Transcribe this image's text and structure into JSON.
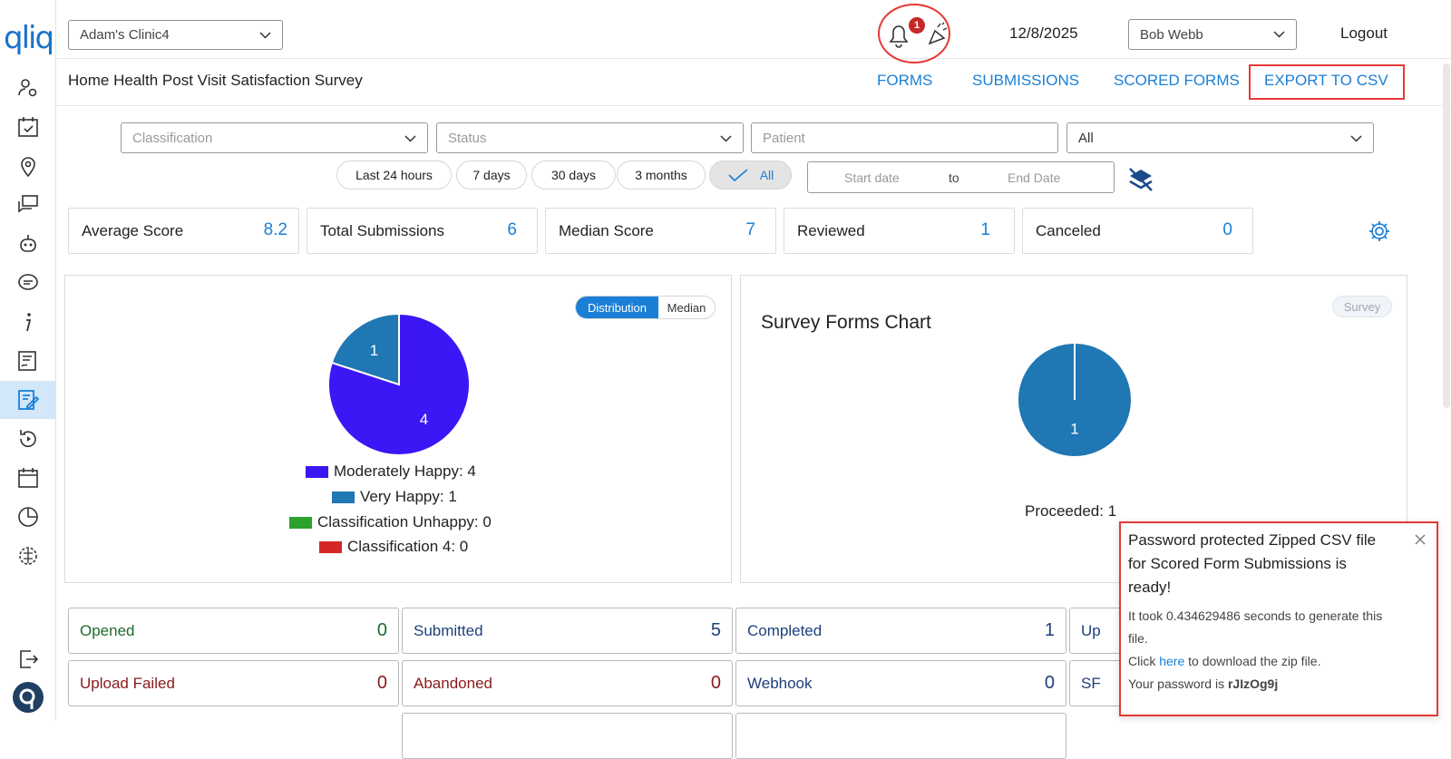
{
  "app": {
    "logo_text": "qliq"
  },
  "header": {
    "clinic_select": "Adam's Clinic4",
    "notification_count": "1",
    "date": "12/8/2025",
    "user_select": "Bob Webb",
    "logout_label": "Logout"
  },
  "subheader": {
    "title": "Home Health Post Visit Satisfaction Survey",
    "tabs": [
      "FORMS",
      "SUBMISSIONS",
      "SCORED FORMS",
      "EXPORT TO CSV"
    ]
  },
  "filters": {
    "classification_placeholder": "Classification",
    "status_placeholder": "Status",
    "patient_placeholder": "Patient",
    "all_select": "All",
    "ranges": [
      "Last 24 hours",
      "7 days",
      "30 days",
      "3 months",
      "All"
    ],
    "start_date_placeholder": "Start date",
    "to_label": "to",
    "end_date_placeholder": "End Date"
  },
  "stats": [
    {
      "label": "Average Score",
      "value": "8.2"
    },
    {
      "label": "Total Submissions",
      "value": "6"
    },
    {
      "label": "Median Score",
      "value": "7"
    },
    {
      "label": "Reviewed",
      "value": "1"
    },
    {
      "label": "Canceled",
      "value": "0"
    }
  ],
  "distribution_panel": {
    "toggle": [
      "Distribution",
      "Median"
    ],
    "legend": [
      {
        "label": "Moderately Happy: 4",
        "color": "#3d16f5"
      },
      {
        "label": "Very Happy: 1",
        "color": "#1f77b4"
      },
      {
        "label": "Classification Unhappy: 0",
        "color": "#2ca02c"
      },
      {
        "label": "Classification 4: 0",
        "color": "#d62728"
      }
    ],
    "slice_labels": [
      "1",
      "4"
    ]
  },
  "survey_panel": {
    "title": "Survey Forms Chart",
    "badge": "Survey",
    "slice_label": "1",
    "legend": "Proceeded: 1"
  },
  "chart_data": [
    {
      "type": "pie",
      "categories": [
        "Moderately Happy",
        "Very Happy",
        "Classification Unhappy",
        "Classification 4"
      ],
      "values": [
        4,
        1,
        0,
        0
      ],
      "colors": [
        "#3d16f5",
        "#1f77b4",
        "#2ca02c",
        "#d62728"
      ]
    },
    {
      "type": "pie",
      "title": "Survey Forms Chart",
      "categories": [
        "Proceeded"
      ],
      "values": [
        1
      ],
      "colors": [
        "#1f77b4"
      ]
    }
  ],
  "status_cards": [
    {
      "label": "Opened",
      "value": "0",
      "color": "#1e6b2e"
    },
    {
      "label": "Submitted",
      "value": "5",
      "color": "#1d3f7a"
    },
    {
      "label": "Completed",
      "value": "1",
      "color": "#1d3f7a"
    },
    {
      "label": "Up",
      "value": "",
      "color": "#1d3f7a"
    },
    {
      "label": "Upload Failed",
      "value": "0",
      "color": "#8b1a1a"
    },
    {
      "label": "Abandoned",
      "value": "0",
      "color": "#8b1a1a"
    },
    {
      "label": "Webhook",
      "value": "0",
      "color": "#1d3f7a"
    },
    {
      "label": "SF",
      "value": "",
      "color": "#1d3f7a"
    }
  ],
  "toast": {
    "title": "Password protected Zipped CSV file for Scored Form Submissions is ready!",
    "line1": "It took 0.434629486 seconds to generate this file.",
    "click_prefix": "Click ",
    "link_text": "here",
    "click_suffix": " to download the zip file.",
    "password_prefix": "Your password is ",
    "password": "rJIzOg9j"
  },
  "icons": {
    "sidebar": [
      "user-settings-icon",
      "calendar-check-icon",
      "location-pin-icon",
      "chat-bubbles-icon",
      "bot-icon",
      "message-icon",
      "info-icon",
      "signed-document-icon",
      "edit-form-icon",
      "history-icon",
      "calendar-icon",
      "pie-chart-icon",
      "brain-icon",
      "logout-icon",
      "qliq-avatar-icon"
    ]
  }
}
